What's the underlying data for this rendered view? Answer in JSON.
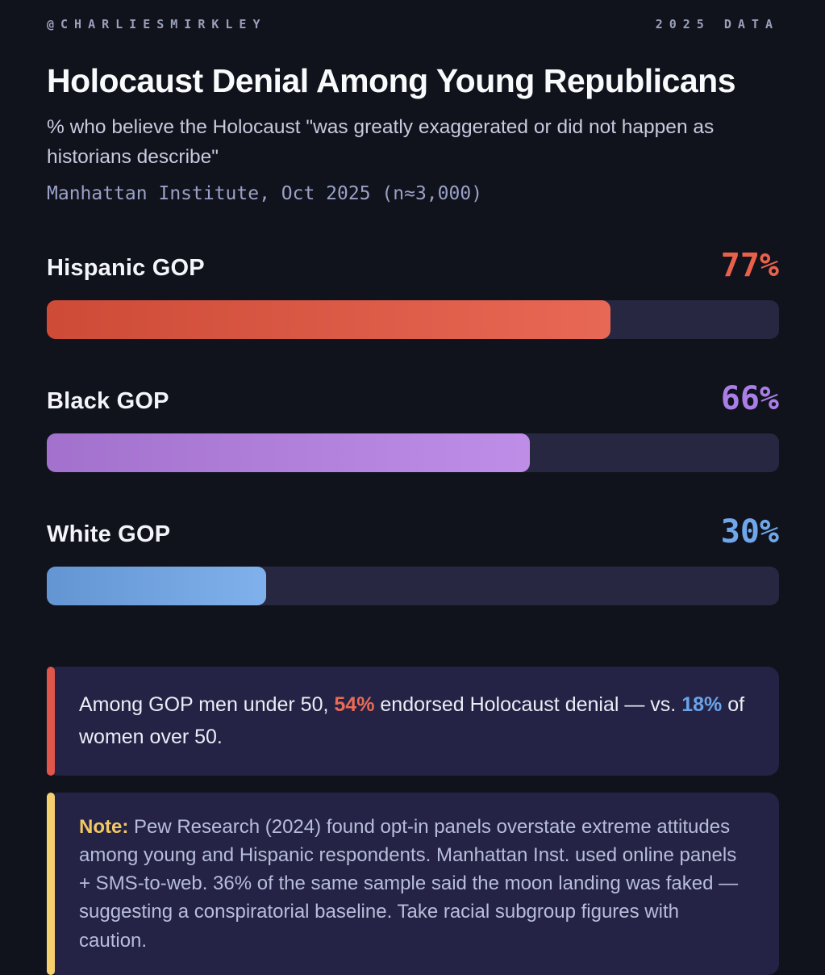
{
  "header": {
    "handle": "@CHARLIESMIRKLEY",
    "badge": "2025 DATA"
  },
  "title": "Holocaust Denial Among Young Republicans",
  "subtitle": "% who believe the Holocaust \"was greatly exaggerated or did not happen as historians describe\"",
  "source": "Manhattan Institute, Oct 2025 (n≈3,000)",
  "chart_data": {
    "type": "bar",
    "orientation": "horizontal",
    "title": "Holocaust Denial Among Young Republicans",
    "categories": [
      "Hispanic GOP",
      "Black GOP",
      "White GOP"
    ],
    "values": [
      77,
      66,
      30
    ],
    "value_labels": [
      "77%",
      "66%",
      "30%"
    ],
    "unit": "%",
    "xlim": [
      0,
      100
    ],
    "grid": "off",
    "bar_colors": [
      "#e4533d",
      "#b57ee4",
      "#6ea6ea"
    ],
    "value_label_colors": [
      "#e9614b",
      "#a97ee6",
      "#6fa7eb"
    ],
    "track_color": "#272742",
    "background_color": "#10121c"
  },
  "stat_callout": {
    "accent_color": "#e0564a",
    "pre": "Among GOP men under 50, ",
    "stat1": "54%",
    "stat1_color": "#e96a55",
    "mid": " endorsed Holocaust denial — vs. ",
    "stat2": "18%",
    "stat2_color": "#6ba3e9",
    "post": " of women over 50."
  },
  "note_callout": {
    "accent_color": "#f6d06e",
    "label_color": "#f2c863",
    "label": "Note:",
    "text": " Pew Research (2024) found opt-in panels overstate extreme attitudes among young and Hispanic respondents. Manhattan Inst. used online panels + SMS-to-web. 36% of the same sample said the moon landing was faked — suggesting a conspiratorial baseline. Take racial subgroup figures with caution."
  }
}
